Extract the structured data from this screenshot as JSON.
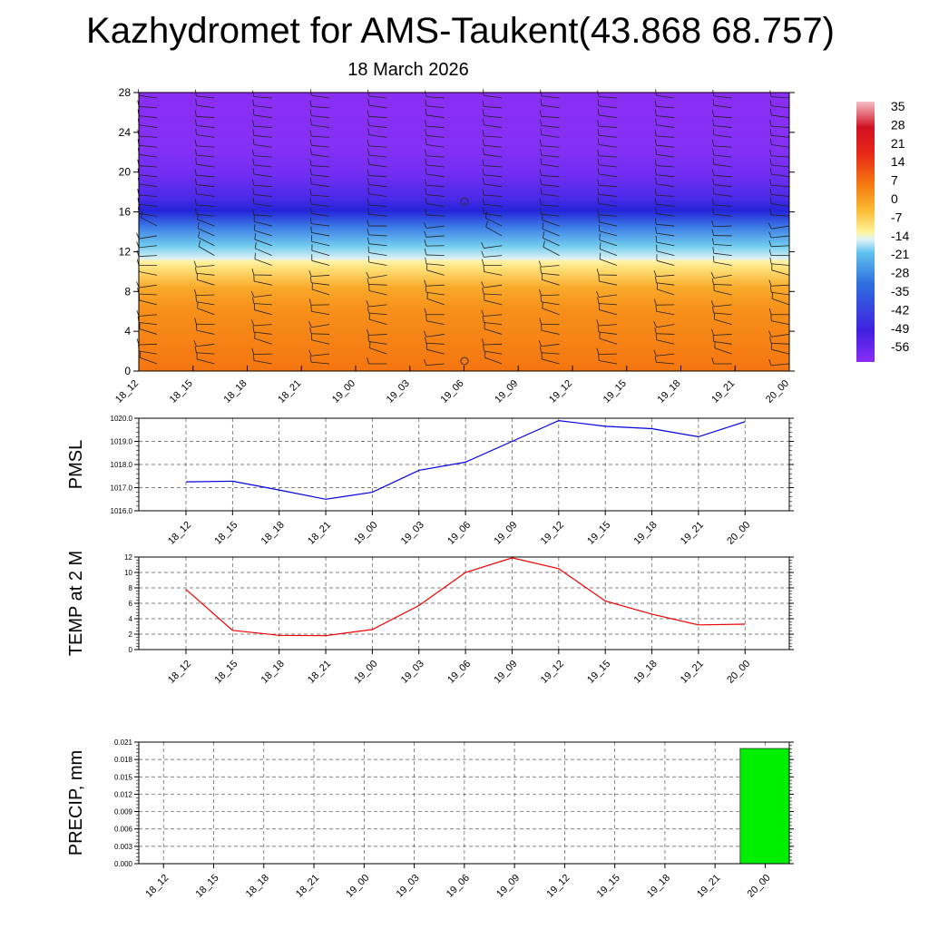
{
  "title": "Kazhydromet for AMS-Taukent(43.868 68.757)",
  "subtitle": "18 March 2026",
  "time_labels": [
    "18_12",
    "18_15",
    "18_18",
    "18_21",
    "19_00",
    "19_03",
    "19_06",
    "19_09",
    "19_12",
    "19_15",
    "19_18",
    "19_21",
    "20_00"
  ],
  "chart_data": [
    {
      "type": "heatmap",
      "title": "",
      "ylim": [
        0,
        28
      ],
      "y_ticks": [
        "0",
        "4",
        "8",
        "12",
        "16",
        "20",
        "24",
        "28"
      ],
      "x_ticks": [
        "18_12",
        "18_15",
        "18_18",
        "18_21",
        "19_00",
        "19_03",
        "19_06",
        "19_09",
        "19_12",
        "19_15",
        "19_18",
        "19_21",
        "20_00"
      ],
      "colorbar_labels": [
        "35",
        "28",
        "21",
        "14",
        "7",
        "0",
        "-7",
        "-14",
        "-21",
        "-28",
        "-35",
        "-42",
        "-49",
        "-56"
      ],
      "colorbar_range": [
        -60,
        40
      ],
      "colors": {
        "warm": "#f57f0f",
        "yellow": "#fff3a0",
        "cyan": "#55c8f0",
        "blue": "#2a2ae0",
        "purple": "#8b2cf5"
      },
      "wind_barbs": true
    },
    {
      "type": "line",
      "ylabel": "PMSL",
      "ylim": [
        1016,
        1020
      ],
      "y_ticks": [
        "1016.0",
        "1017.0",
        "1018.0",
        "1019.0",
        "1020.0"
      ],
      "categories": [
        "18_12",
        "18_15",
        "18_18",
        "18_21",
        "19_00",
        "19_03",
        "19_06",
        "19_09",
        "19_12",
        "19_15",
        "19_18",
        "19_21",
        "20_00"
      ],
      "values": [
        1017.25,
        1017.28,
        1016.9,
        1016.5,
        1016.8,
        1017.75,
        1018.1,
        1019.0,
        1019.9,
        1019.65,
        1019.55,
        1019.2,
        1019.85
      ],
      "color": "#0000dd",
      "grid": true
    },
    {
      "type": "line",
      "ylabel": "TEMP at 2 M",
      "ylim": [
        0,
        12
      ],
      "y_ticks": [
        "0",
        "2",
        "4",
        "6",
        "8",
        "10",
        "12"
      ],
      "categories": [
        "18_12",
        "18_15",
        "18_18",
        "18_21",
        "19_00",
        "19_03",
        "19_06",
        "19_09",
        "19_12",
        "19_15",
        "19_18",
        "19_21",
        "20_00"
      ],
      "values": [
        7.8,
        2.5,
        1.85,
        1.8,
        2.6,
        5.7,
        10.0,
        11.9,
        10.5,
        6.3,
        4.6,
        3.2,
        3.3
      ],
      "color": "#ee0000",
      "grid": true
    },
    {
      "type": "bar",
      "ylabel": "PRECIP, mm",
      "ylim": [
        0,
        0.021
      ],
      "y_ticks": [
        "0.000",
        "0.003",
        "0.006",
        "0.009",
        "0.012",
        "0.015",
        "0.018",
        "0.021"
      ],
      "categories": [
        "18_12",
        "18_15",
        "18_18",
        "18_21",
        "19_00",
        "19_03",
        "19_06",
        "19_09",
        "19_12",
        "19_15",
        "19_18",
        "19_21",
        "20_00"
      ],
      "values": [
        0,
        0,
        0,
        0,
        0,
        0,
        0,
        0,
        0,
        0,
        0,
        0,
        0.0199
      ],
      "color": "#00ee00",
      "grid": true
    }
  ]
}
